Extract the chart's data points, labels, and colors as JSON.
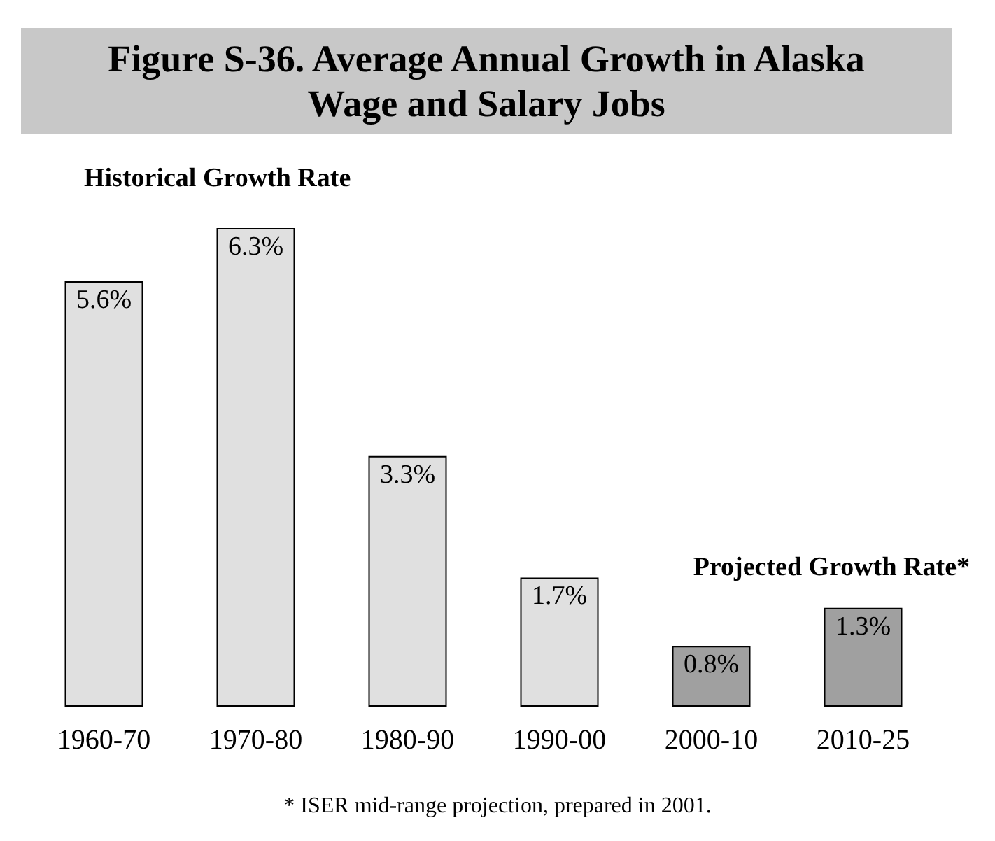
{
  "chart_data": {
    "type": "bar",
    "title": "Figure S-36. Average Annual Growth in Alaska Wage and Salary Jobs",
    "categories": [
      "1960-70",
      "1970-80",
      "1980-90",
      "1990-00",
      "2000-10",
      "2010-25"
    ],
    "values": [
      5.6,
      6.3,
      3.3,
      1.7,
      0.8,
      1.3
    ],
    "value_labels": [
      "5.6%",
      "6.3%",
      "3.3%",
      "1.7%",
      "0.8%",
      "1.3%"
    ],
    "colors": [
      "#e0e0e0",
      "#e0e0e0",
      "#e0e0e0",
      "#e0e0e0",
      "#a0a0a0",
      "#a0a0a0"
    ],
    "annotations": [
      "Historical Growth Rate",
      "Projected Growth Rate*",
      "* ISER mid-range projection, prepared in 2001."
    ]
  }
}
